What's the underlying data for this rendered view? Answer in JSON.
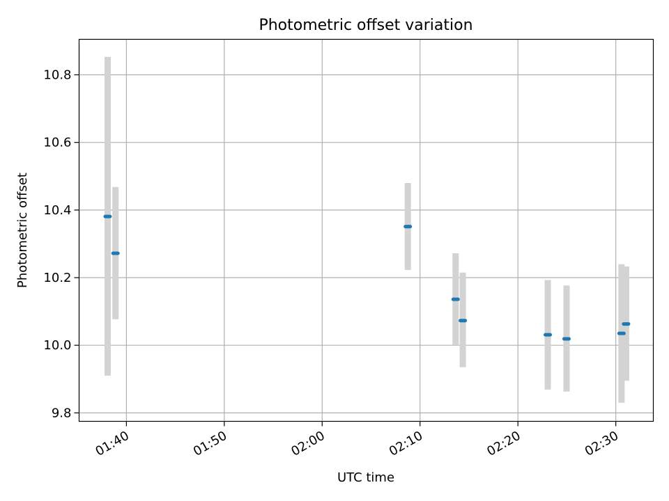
{
  "chart_data": {
    "type": "scatter",
    "title": "Photometric offset variation",
    "xlabel": "UTC time",
    "ylabel": "Photometric offset",
    "x_axis_type": "time",
    "xlim": [
      "01:35:10",
      "02:33:50"
    ],
    "ylim": [
      9.775,
      10.905
    ],
    "x_ticks": [
      "01:40",
      "01:50",
      "02:00",
      "02:10",
      "02:20",
      "02:30"
    ],
    "y_ticks": [
      9.8,
      10.0,
      10.2,
      10.4,
      10.6,
      10.8
    ],
    "y_tick_labels": [
      "9.8",
      "10.0",
      "10.2",
      "10.4",
      "10.6",
      "10.8"
    ],
    "grid": true,
    "legend": "none",
    "colors": {
      "marker": "#1f77b4",
      "errorbar": "#d3d3d3",
      "grid": "#b0b0b0",
      "axes": "#000000"
    },
    "series": [
      {
        "x": [
          "01:38:05",
          "01:38:53",
          "02:08:45",
          "02:13:38",
          "02:14:22",
          "02:23:03",
          "02:24:58",
          "02:30:35",
          "02:31:03"
        ],
        "y": [
          10.381,
          10.272,
          10.351,
          10.136,
          10.073,
          10.031,
          10.019,
          10.035,
          10.063
        ],
        "y_low": [
          9.91,
          10.077,
          10.223,
          10.0,
          9.935,
          9.869,
          9.863,
          9.83,
          9.895
        ],
        "y_high": [
          10.853,
          10.468,
          10.48,
          10.272,
          10.215,
          10.193,
          10.177,
          10.24,
          10.233
        ]
      }
    ]
  }
}
